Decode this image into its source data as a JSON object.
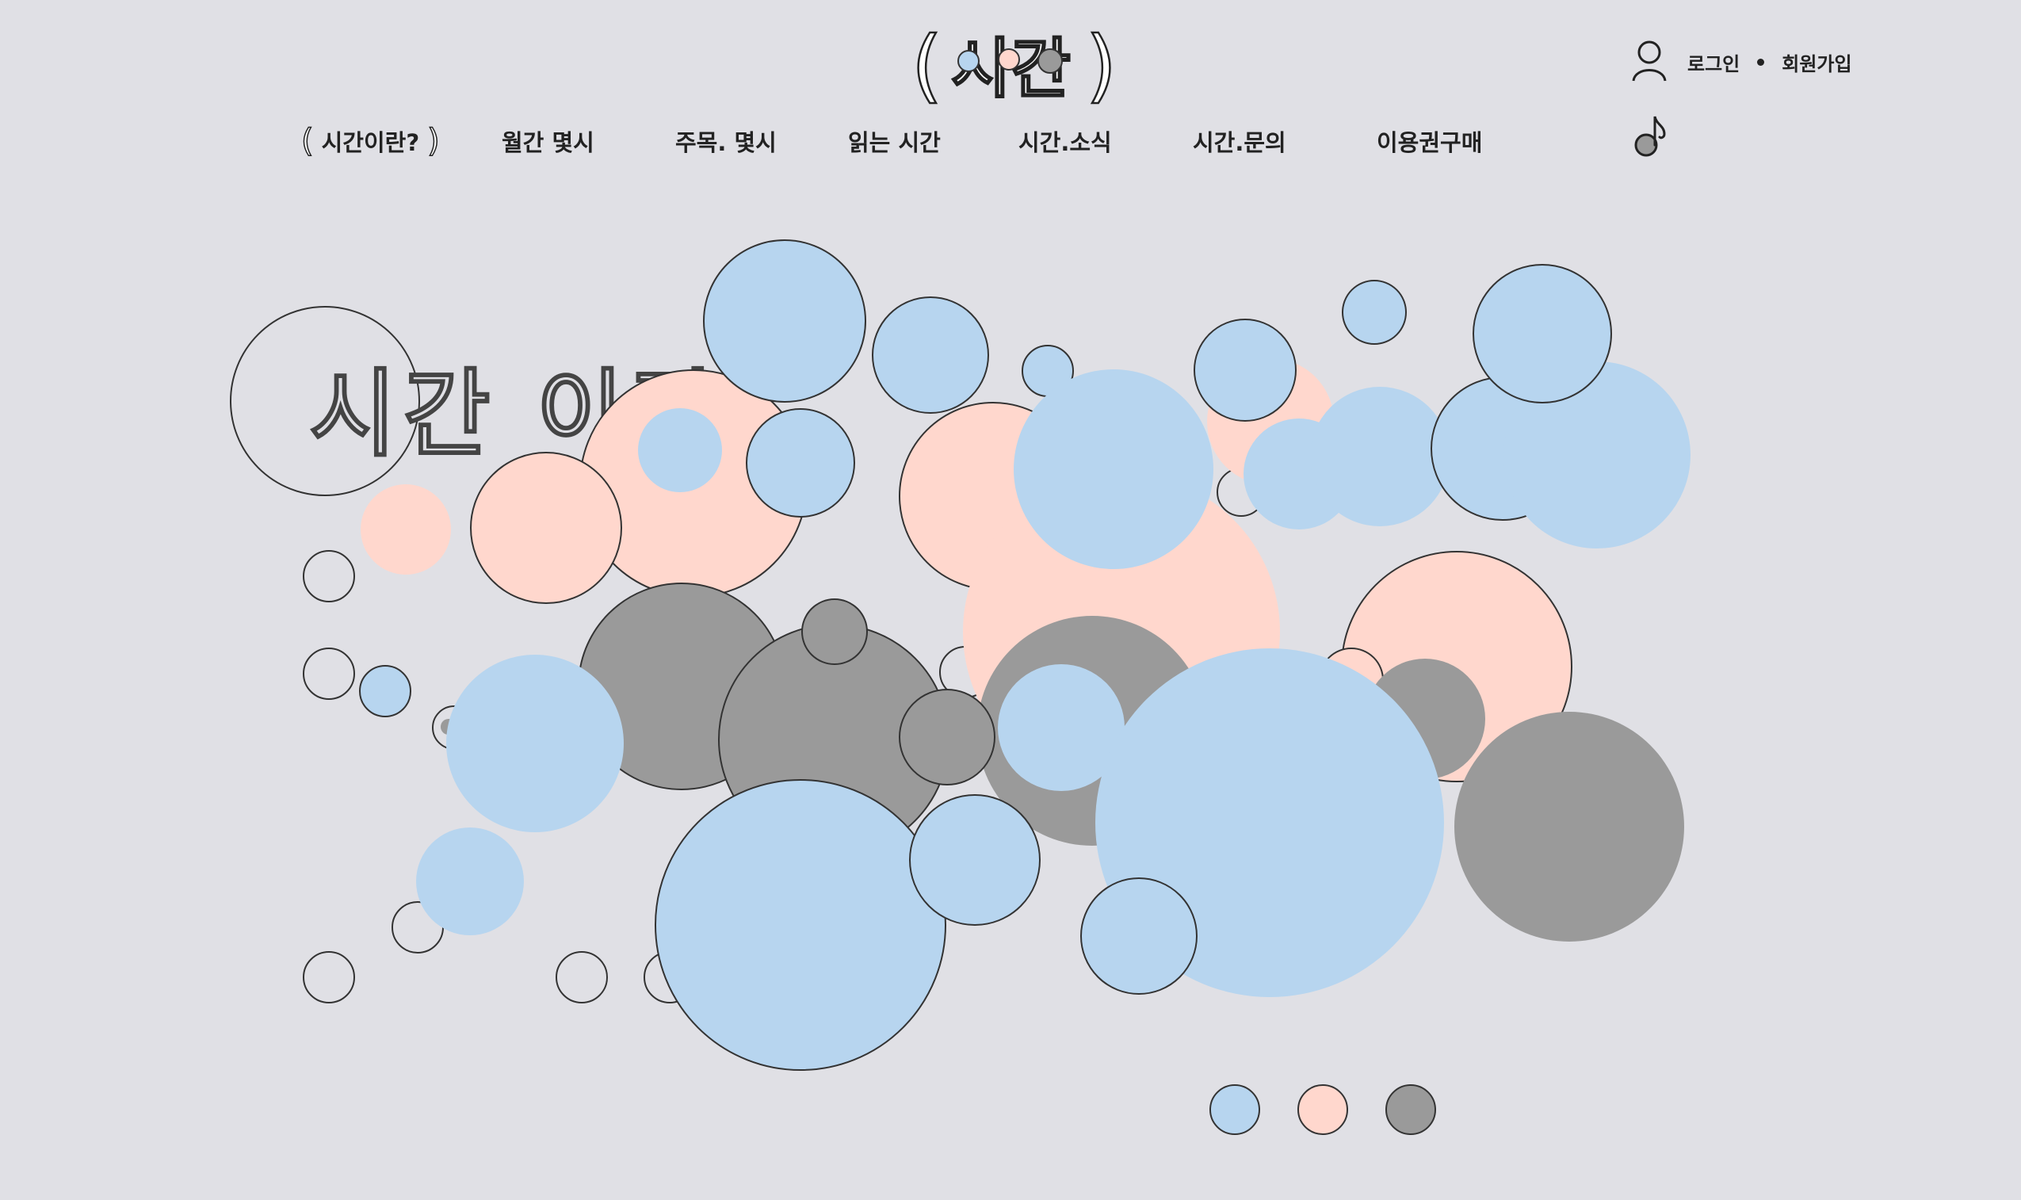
{
  "header": {
    "logo_text": "시간",
    "logo_paren_open": "(",
    "logo_paren_close": ")",
    "auth": {
      "login": "로그인",
      "signup": "회원가입"
    }
  },
  "nav": {
    "paren_open": "(",
    "paren_close": ")",
    "items": [
      "시간이란?",
      "월간 몇시",
      "주목. 몇시",
      "읽는 시간",
      "시간.소식",
      "시간.문의",
      "이용권구매"
    ]
  },
  "hero": {
    "title": "시간 이란"
  },
  "colors": {
    "blue": "#b7d5ef",
    "pink": "#ffd7cd",
    "gray": "#9a9a9a",
    "outline": "#333333",
    "background": "#e0e0e5"
  }
}
